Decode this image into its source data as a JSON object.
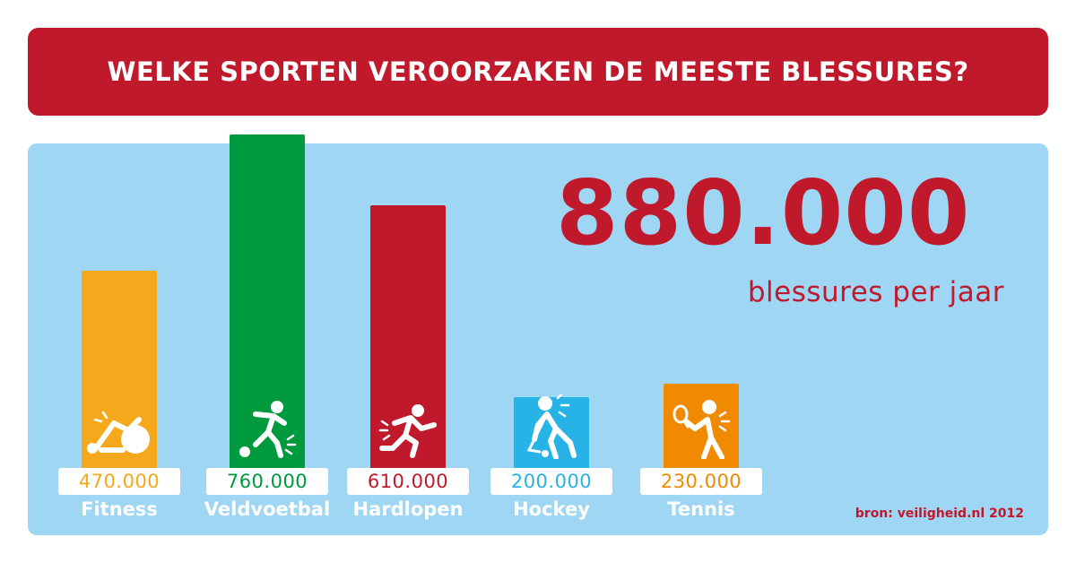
{
  "header": {
    "title": "WELKE SPORTEN VEROORZAKEN DE MEESTE BLESSURES?"
  },
  "highlight": {
    "value": "880.000",
    "caption": "blessures per jaar"
  },
  "source": "bron: veiligheid.nl 2012",
  "colors": {
    "banner": "#c0192b",
    "panel": "#9ed6f3",
    "accent_text": "#c0192b",
    "fitness": "#f5a81c",
    "veldvoetbal": "#009a3e",
    "hardlopen": "#c0192b",
    "hockey": "#27b3e5",
    "tennis": "#f08a00"
  },
  "chart_data": {
    "type": "bar",
    "title": "WELKE SPORTEN VEROORZAKEN DE MEESTE BLESSURES?",
    "categories": [
      "Fitness",
      "Veldvoetbal",
      "Hardlopen",
      "Hockey",
      "Tennis"
    ],
    "values": [
      470000,
      760000,
      610000,
      200000,
      230000
    ],
    "value_labels": [
      "470.000",
      "760.000",
      "610.000",
      "200.000",
      "230.000"
    ],
    "icons": [
      "fitness-ball-injury-icon",
      "football-player-injury-icon",
      "runner-injury-icon",
      "hockey-player-injury-icon",
      "tennis-player-injury-icon"
    ],
    "bar_colors": [
      "#f5a81c",
      "#009a3e",
      "#c0192b",
      "#27b3e5",
      "#f08a00"
    ],
    "xlabel": "",
    "ylabel": "",
    "grid": false
  }
}
